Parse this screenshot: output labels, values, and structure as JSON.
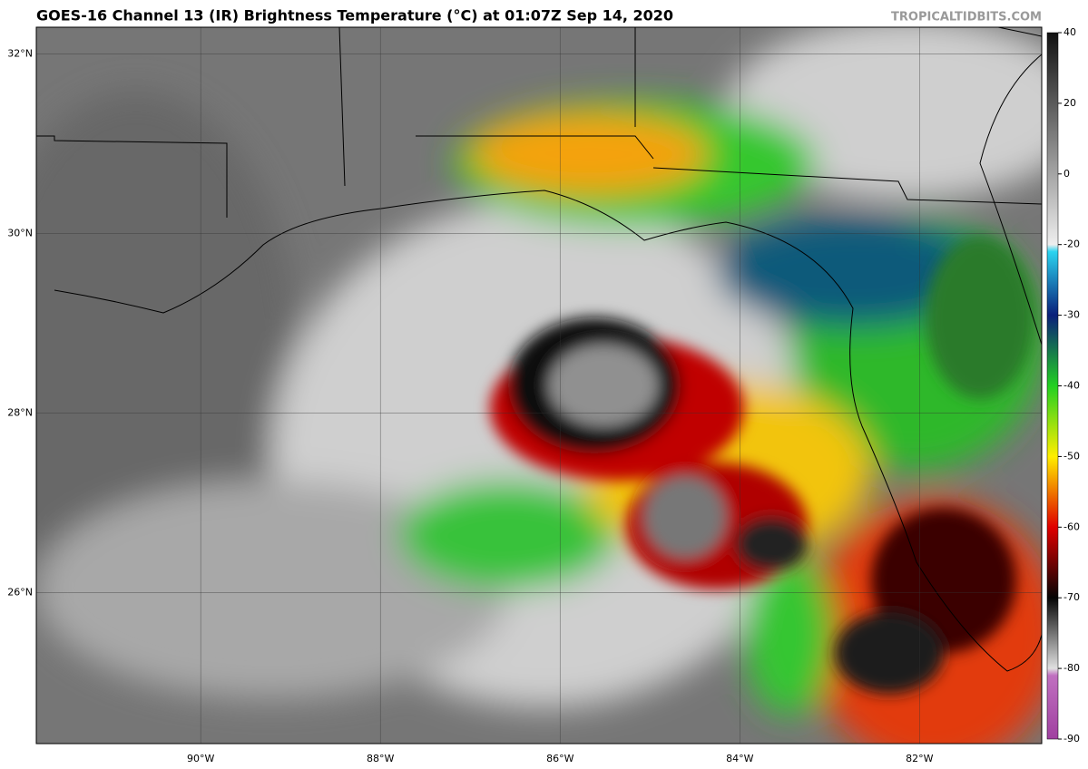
{
  "header": {
    "title": "GOES-16 Channel 13 (IR) Brightness Temperature (°C) at 01:07Z Sep 14, 2020",
    "source": "TROPICALTIDBITS.COM"
  },
  "map": {
    "lon_range": [
      -91.83,
      -80.64
    ],
    "lat_range": [
      24.32,
      32.3
    ],
    "lat_labels": [
      {
        "value": 32,
        "label": "32°N"
      },
      {
        "value": 30,
        "label": "30°N"
      },
      {
        "value": 28,
        "label": "28°N"
      },
      {
        "value": 26,
        "label": "26°N"
      }
    ],
    "lon_labels": [
      {
        "value": -90,
        "label": "90°W"
      },
      {
        "value": -88,
        "label": "88°W"
      },
      {
        "value": -86,
        "label": "86°W"
      },
      {
        "value": -84,
        "label": "84°W"
      },
      {
        "value": -82,
        "label": "82°W"
      }
    ]
  },
  "colorbar": {
    "lim": [
      -90,
      40
    ],
    "ticks": [
      40,
      20,
      0,
      -20,
      -30,
      -40,
      -50,
      -60,
      -70,
      -80,
      -90
    ]
  }
}
